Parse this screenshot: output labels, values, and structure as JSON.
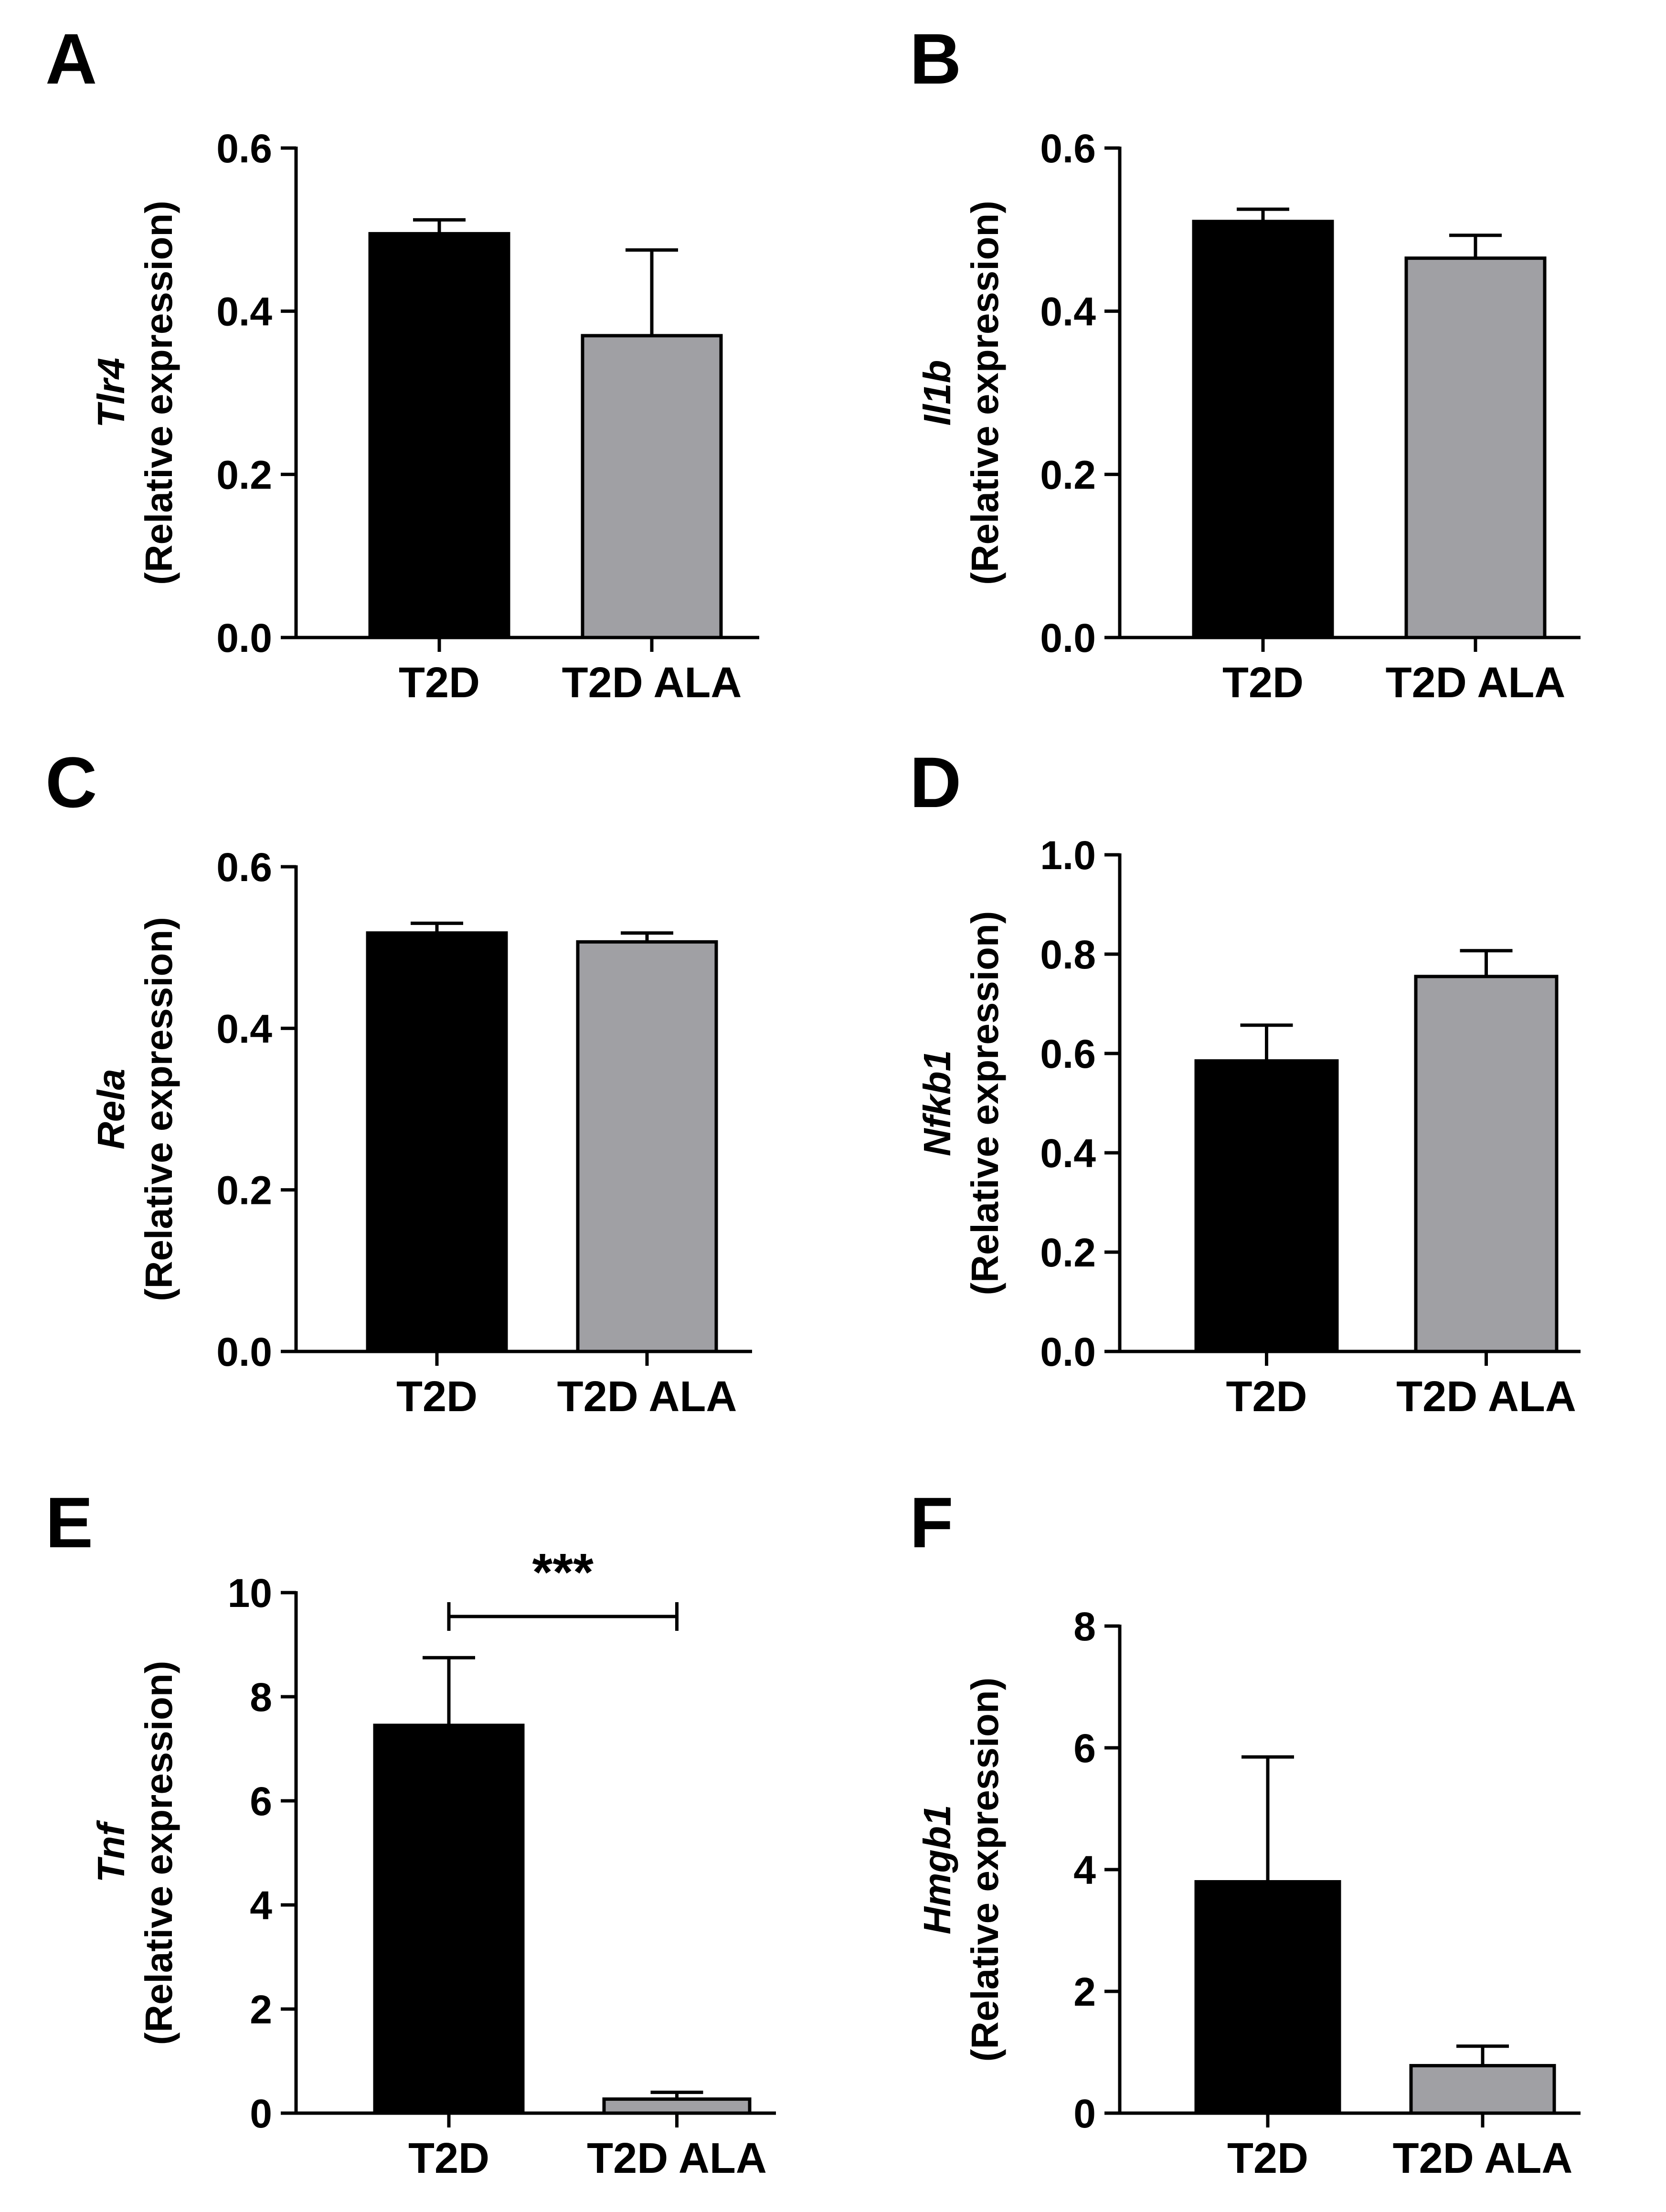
{
  "figure": {
    "colors": {
      "t2d": "#000000",
      "t2d_ala": "#a0a0a4",
      "axis": "#000000",
      "text": "#000000"
    }
  },
  "chart_data": [
    {
      "panel": "A",
      "type": "bar",
      "gene": "Tlr4",
      "ylabel_unit": "(Relative expression)",
      "categories": [
        "T2D",
        "T2D ALA"
      ],
      "values": [
        0.495,
        0.37
      ],
      "errors": [
        0.017,
        0.105
      ],
      "ylim": [
        0,
        0.6
      ],
      "ticks": [
        0.0,
        0.2,
        0.4,
        0.6
      ],
      "tick_labels": [
        "0.0",
        "0.2",
        "0.4",
        "0.6"
      ]
    },
    {
      "panel": "B",
      "type": "bar",
      "gene": "Il1b",
      "ylabel_unit": "(Relative expression)",
      "categories": [
        "T2D",
        "T2D ALA"
      ],
      "values": [
        0.51,
        0.465
      ],
      "errors": [
        0.015,
        0.028
      ],
      "ylim": [
        0,
        0.6
      ],
      "ticks": [
        0.0,
        0.2,
        0.4,
        0.6
      ],
      "tick_labels": [
        "0.0",
        "0.2",
        "0.4",
        "0.6"
      ]
    },
    {
      "panel": "C",
      "type": "bar",
      "gene": "Rela",
      "ylabel_unit": "(Relative expression)",
      "categories": [
        "T2D",
        "T2D ALA"
      ],
      "values": [
        0.518,
        0.507
      ],
      "errors": [
        0.012,
        0.011
      ],
      "ylim": [
        0,
        0.6
      ],
      "ticks": [
        0.0,
        0.2,
        0.4,
        0.6
      ],
      "tick_labels": [
        "0.0",
        "0.2",
        "0.4",
        "0.6"
      ]
    },
    {
      "panel": "D",
      "type": "bar",
      "gene": "Nfkb1",
      "ylabel_unit": "(Relative expression)",
      "categories": [
        "T2D",
        "T2D ALA"
      ],
      "values": [
        0.585,
        0.755
      ],
      "errors": [
        0.072,
        0.052
      ],
      "ylim": [
        0,
        1.0
      ],
      "ticks": [
        0.0,
        0.2,
        0.4,
        0.6,
        0.8,
        1.0
      ],
      "tick_labels": [
        "0.0",
        "0.2",
        "0.4",
        "0.6",
        "0.8",
        "1.0"
      ]
    },
    {
      "panel": "E",
      "type": "bar",
      "gene": "Tnf",
      "ylabel_unit": "(Relative expression)",
      "categories": [
        "T2D",
        "T2D ALA"
      ],
      "values": [
        7.45,
        0.27
      ],
      "errors": [
        1.3,
        0.13
      ],
      "ylim": [
        0,
        10
      ],
      "ticks": [
        0,
        2,
        4,
        6,
        8,
        10
      ],
      "tick_labels": [
        "0",
        "2",
        "4",
        "6",
        "8",
        "10"
      ],
      "significance": "***"
    },
    {
      "panel": "F",
      "type": "bar",
      "gene": "Hmgb1",
      "ylabel_unit": "(Relative expression)",
      "categories": [
        "T2D",
        "T2D ALA"
      ],
      "values": [
        3.8,
        0.78
      ],
      "errors": [
        2.05,
        0.32
      ],
      "ylim": [
        0,
        8
      ],
      "ticks": [
        0,
        2,
        4,
        6,
        8
      ],
      "tick_labels": [
        "0",
        "2",
        "4",
        "6",
        "8"
      ]
    }
  ]
}
